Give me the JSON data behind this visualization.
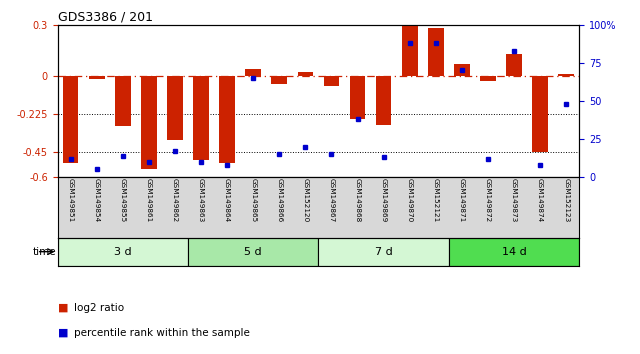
{
  "title": "GDS3386 / 201",
  "samples": [
    "GSM149851",
    "GSM149854",
    "GSM149855",
    "GSM149861",
    "GSM149862",
    "GSM149863",
    "GSM149864",
    "GSM149865",
    "GSM149866",
    "GSM152120",
    "GSM149867",
    "GSM149868",
    "GSM149869",
    "GSM149870",
    "GSM152121",
    "GSM149871",
    "GSM149872",
    "GSM149873",
    "GSM149874",
    "GSM152123"
  ],
  "log2_ratio": [
    -0.52,
    -0.02,
    -0.3,
    -0.55,
    -0.38,
    -0.5,
    -0.52,
    0.04,
    -0.05,
    0.02,
    -0.06,
    -0.26,
    -0.29,
    0.3,
    0.28,
    0.07,
    -0.03,
    0.13,
    -0.45,
    0.01
  ],
  "percentile": [
    12,
    5,
    14,
    10,
    17,
    10,
    8,
    65,
    15,
    20,
    15,
    38,
    13,
    88,
    88,
    70,
    12,
    83,
    8,
    48
  ],
  "groups": [
    {
      "label": "3 d",
      "start": 0,
      "end": 5,
      "color": "#d4f7d4"
    },
    {
      "label": "5 d",
      "start": 5,
      "end": 10,
      "color": "#a8e8a8"
    },
    {
      "label": "7 d",
      "start": 10,
      "end": 15,
      "color": "#d4f7d4"
    },
    {
      "label": "14 d",
      "start": 15,
      "end": 20,
      "color": "#50dd50"
    }
  ],
  "ylim": [
    -0.6,
    0.3
  ],
  "yticks_left": [
    0.3,
    0.0,
    -0.225,
    -0.45,
    -0.6
  ],
  "ytick_labels_left": [
    "0.3",
    "0",
    "-0.225",
    "-0.45",
    "-0.6"
  ],
  "yticks_right": [
    100,
    75,
    50,
    25,
    0
  ],
  "ytick_labels_right": [
    "100%",
    "75",
    "50",
    "25",
    "0"
  ],
  "hlines": [
    -0.225,
    -0.45
  ],
  "bar_color": "#cc2200",
  "dot_color": "#0000cc",
  "zero_line_color": "#cc2200",
  "bg_color": "#ffffff",
  "label_area_color": "#d8d8d8"
}
